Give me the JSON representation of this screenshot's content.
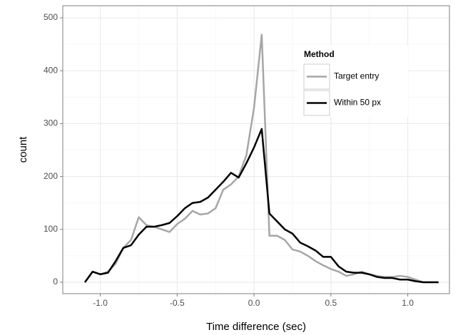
{
  "chart_data": {
    "type": "line",
    "x_label": "Time difference (sec)",
    "y_label": "count",
    "x": [
      -1.1,
      -1.05,
      -1.0,
      -0.95,
      -0.9,
      -0.85,
      -0.8,
      -0.75,
      -0.7,
      -0.65,
      -0.6,
      -0.55,
      -0.5,
      -0.45,
      -0.4,
      -0.35,
      -0.3,
      -0.25,
      -0.2,
      -0.15,
      -0.1,
      -0.05,
      0.0,
      0.05,
      0.1,
      0.15,
      0.2,
      0.25,
      0.3,
      0.35,
      0.4,
      0.45,
      0.5,
      0.55,
      0.6,
      0.65,
      0.7,
      0.75,
      0.8,
      0.85,
      0.9,
      0.95,
      1.0,
      1.05,
      1.1,
      1.15,
      1.2
    ],
    "series": [
      {
        "name": "Target entry",
        "color": "#a6a6a6",
        "values": [
          0,
          20,
          15,
          20,
          35,
          65,
          80,
          123,
          108,
          105,
          100,
          95,
          110,
          120,
          135,
          128,
          130,
          140,
          175,
          185,
          200,
          240,
          330,
          468,
          88,
          88,
          80,
          62,
          58,
          50,
          40,
          32,
          25,
          20,
          12,
          15,
          20,
          15,
          12,
          10,
          10,
          12,
          10,
          5,
          0,
          0,
          0
        ]
      },
      {
        "name": "Within 50 px",
        "color": "#000000",
        "values": [
          0,
          20,
          15,
          18,
          40,
          65,
          70,
          90,
          105,
          105,
          108,
          112,
          125,
          140,
          150,
          152,
          160,
          175,
          190,
          207,
          198,
          225,
          255,
          290,
          130,
          115,
          100,
          92,
          75,
          68,
          60,
          48,
          48,
          30,
          20,
          18,
          18,
          15,
          10,
          8,
          8,
          5,
          5,
          2,
          0,
          0,
          0
        ]
      }
    ],
    "xlim": [
      -1.244,
      1.271
    ],
    "ylim": [
      -21.6,
      523
    ],
    "xticks": [
      {
        "value": -1.0,
        "label": "-1.0"
      },
      -0.5,
      {
        "value": 0.0,
        "label": "0.0"
      },
      0.5,
      {
        "value": 1.0,
        "label": "1.0"
      }
    ],
    "yticks": [
      0,
      100,
      200,
      300,
      400,
      500
    ],
    "grid": true,
    "legend": {
      "title": "Method",
      "position": "top-right"
    }
  }
}
